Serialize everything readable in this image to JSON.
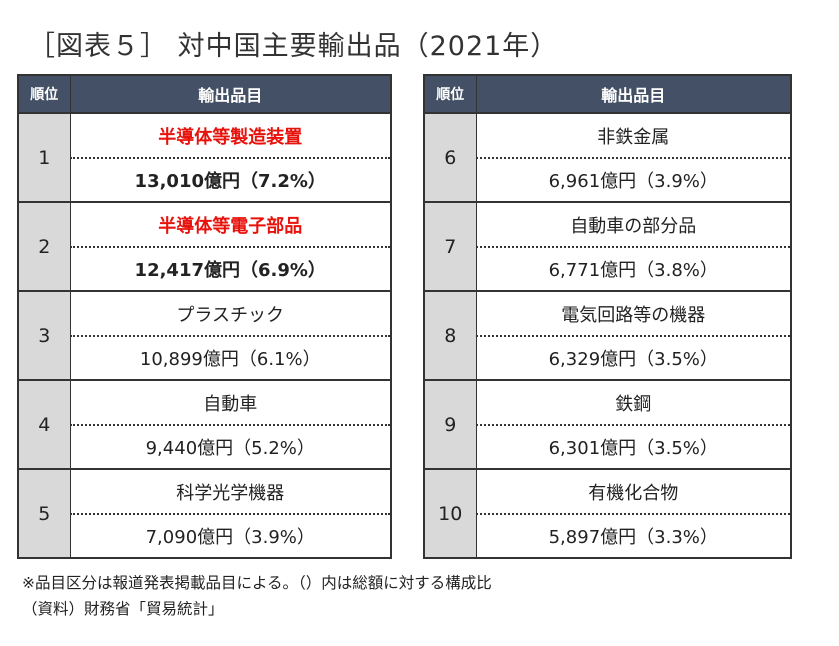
{
  "title": "［図表５］ 対中国主要輸出品（2021年）",
  "headers": {
    "rank": "順位",
    "item": "輸出品目"
  },
  "left_rows": [
    {
      "rank": "1",
      "item": "半導体等製造装置",
      "value": "13,010億円（7.2%）",
      "highlight": true
    },
    {
      "rank": "2",
      "item": "半導体等電子部品",
      "value": "12,417億円（6.9%）",
      "highlight": true
    },
    {
      "rank": "3",
      "item": "プラスチック",
      "value": "10,899億円（6.1%）",
      "highlight": false
    },
    {
      "rank": "4",
      "item": "自動車",
      "value": "9,440億円（5.2%）",
      "highlight": false
    },
    {
      "rank": "5",
      "item": "科学光学機器",
      "value": "7,090億円（3.9%）",
      "highlight": false
    }
  ],
  "right_rows": [
    {
      "rank": "6",
      "item": "非鉄金属",
      "value": "6,961億円（3.9%）",
      "highlight": false
    },
    {
      "rank": "7",
      "item": "自動車の部分品",
      "value": "6,771億円（3.8%）",
      "highlight": false
    },
    {
      "rank": "8",
      "item": "電気回路等の機器",
      "value": "6,329億円（3.5%）",
      "highlight": false
    },
    {
      "rank": "9",
      "item": "鉄鋼",
      "value": "6,301億円（3.5%）",
      "highlight": false
    },
    {
      "rank": "10",
      "item": "有機化合物",
      "value": "5,897億円（3.3%）",
      "highlight": false
    }
  ],
  "notes": {
    "note1": "※品目区分は報道発表掲載品目による。（）内は総額に対する構成比",
    "note2": "（資料）財務省「貿易統計」"
  },
  "colors": {
    "header_bg": "#445066",
    "rank_bg": "#d9d9d9",
    "highlight_text": "#e8120c"
  }
}
